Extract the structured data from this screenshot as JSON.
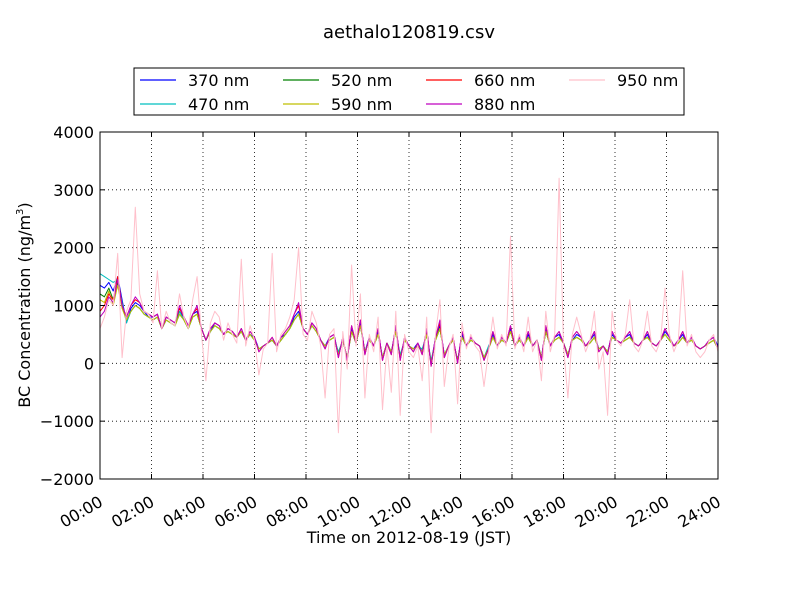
{
  "chart_data": {
    "type": "line",
    "title": "aethalo120819.csv",
    "xlabel": "Time on 2012-08-19 (JST)",
    "ylabel": "BC Concentration (ng/m",
    "ylabel_superscript": "3",
    "ylabel_suffix": ")",
    "xlim": [
      "00:00",
      "24:00"
    ],
    "ylim": [
      -2000,
      4000
    ],
    "grid": true,
    "legend_placement": "top",
    "x_ticks": [
      "00:00",
      "02:00",
      "04:00",
      "06:00",
      "08:00",
      "10:00",
      "12:00",
      "14:00",
      "16:00",
      "18:00",
      "20:00",
      "22:00",
      "24:00"
    ],
    "y_ticks": [
      -2000,
      -1000,
      0,
      1000,
      2000,
      3000,
      4000
    ],
    "y_tick_labels": [
      "−2000",
      "−1000",
      "0",
      "1000",
      "2000",
      "3000",
      "4000"
    ],
    "series": [
      {
        "name": "370 nm",
        "color": "#0000ff",
        "values": [
          1350,
          1300,
          1400,
          1250,
          1500,
          1100,
          700,
          950,
          1050,
          1000,
          900,
          800,
          800,
          850,
          600,
          800,
          750,
          700,
          900,
          800,
          650,
          850,
          900,
          600,
          400,
          550,
          700,
          650,
          500,
          600,
          550,
          450,
          600,
          400,
          500,
          450,
          250,
          300,
          350,
          400,
          300,
          450,
          500,
          600,
          800,
          900,
          600,
          500,
          700,
          600,
          400,
          300,
          450,
          500,
          150,
          400,
          100,
          600,
          350,
          700,
          200,
          450,
          300,
          550,
          100,
          350,
          200,
          600,
          100,
          400,
          300,
          250,
          350,
          200,
          550,
          0,
          450,
          650,
          150,
          300,
          400,
          50,
          500,
          300,
          450,
          350,
          300,
          100,
          250,
          500,
          300,
          450,
          350,
          600,
          300,
          450,
          300,
          500,
          300,
          400,
          100,
          600,
          300,
          450,
          500,
          350,
          150,
          400,
          500,
          450,
          300,
          400,
          500,
          250,
          300,
          200,
          500,
          400,
          350,
          450,
          500,
          350,
          300,
          400,
          500,
          350,
          300,
          400,
          550,
          450,
          300,
          400,
          500,
          350,
          450,
          300,
          250,
          300,
          400,
          450,
          300
        ]
      },
      {
        "name": "470 nm",
        "color": "#00bfbf",
        "values": [
          1550,
          1500,
          1450,
          1400,
          1450,
          1050,
          700,
          900,
          1000,
          950,
          850,
          800,
          750,
          800,
          600,
          750,
          700,
          650,
          900,
          750,
          600,
          800,
          850,
          600,
          400,
          550,
          650,
          600,
          500,
          550,
          500,
          450,
          550,
          400,
          500,
          400,
          250,
          300,
          350,
          400,
          300,
          400,
          500,
          600,
          750,
          850,
          600,
          500,
          650,
          550,
          400,
          300,
          400,
          450,
          200,
          400,
          100,
          550,
          350,
          650,
          200,
          400,
          300,
          500,
          100,
          350,
          200,
          550,
          150,
          400,
          300,
          250,
          300,
          250,
          500,
          50,
          400,
          600,
          150,
          300,
          400,
          50,
          450,
          300,
          400,
          350,
          300,
          100,
          300,
          450,
          300,
          400,
          350,
          550,
          300,
          400,
          300,
          450,
          300,
          400,
          100,
          550,
          300,
          400,
          450,
          350,
          150,
          400,
          450,
          400,
          300,
          350,
          450,
          250,
          300,
          200,
          450,
          400,
          350,
          400,
          450,
          350,
          300,
          400,
          450,
          350,
          300,
          400,
          500,
          400,
          300,
          350,
          450,
          350,
          400,
          300,
          250,
          300,
          350,
          400,
          250
        ]
      },
      {
        "name": "520 nm",
        "color": "#008000",
        "values": [
          1200,
          1150,
          1300,
          1100,
          1400,
          1000,
          750,
          900,
          1000,
          950,
          850,
          800,
          750,
          800,
          600,
          750,
          700,
          650,
          850,
          750,
          600,
          800,
          850,
          600,
          400,
          550,
          650,
          600,
          500,
          550,
          500,
          450,
          550,
          400,
          500,
          400,
          250,
          300,
          350,
          400,
          300,
          400,
          500,
          600,
          750,
          850,
          600,
          500,
          650,
          550,
          400,
          300,
          400,
          450,
          150,
          400,
          100,
          550,
          350,
          650,
          200,
          400,
          300,
          500,
          100,
          350,
          200,
          550,
          100,
          400,
          300,
          250,
          300,
          200,
          500,
          0,
          400,
          600,
          150,
          300,
          400,
          50,
          450,
          300,
          400,
          350,
          300,
          100,
          250,
          450,
          300,
          400,
          350,
          550,
          300,
          400,
          300,
          450,
          300,
          400,
          100,
          550,
          300,
          400,
          450,
          350,
          150,
          400,
          450,
          400,
          300,
          350,
          450,
          250,
          300,
          200,
          450,
          400,
          350,
          400,
          450,
          350,
          300,
          400,
          450,
          350,
          300,
          400,
          500,
          400,
          300,
          350,
          450,
          350,
          400,
          300,
          250,
          300,
          350,
          400,
          250
        ]
      },
      {
        "name": "590 nm",
        "color": "#bfbf00",
        "values": [
          1100,
          1050,
          1250,
          1000,
          1350,
          950,
          750,
          900,
          1000,
          950,
          850,
          800,
          750,
          800,
          600,
          750,
          700,
          650,
          850,
          750,
          600,
          800,
          850,
          600,
          400,
          550,
          650,
          600,
          500,
          550,
          500,
          450,
          550,
          400,
          500,
          400,
          250,
          300,
          350,
          400,
          300,
          400,
          500,
          600,
          750,
          850,
          600,
          500,
          650,
          550,
          400,
          300,
          400,
          450,
          150,
          400,
          100,
          550,
          350,
          650,
          200,
          400,
          300,
          500,
          100,
          350,
          200,
          550,
          100,
          400,
          300,
          250,
          300,
          200,
          500,
          0,
          400,
          600,
          150,
          300,
          400,
          50,
          450,
          300,
          400,
          350,
          300,
          100,
          250,
          450,
          300,
          400,
          350,
          550,
          300,
          400,
          300,
          450,
          300,
          400,
          100,
          550,
          300,
          400,
          450,
          350,
          150,
          400,
          450,
          400,
          300,
          350,
          450,
          250,
          300,
          200,
          450,
          400,
          350,
          400,
          450,
          350,
          300,
          400,
          450,
          350,
          300,
          400,
          500,
          400,
          300,
          350,
          450,
          350,
          400,
          300,
          250,
          300,
          350,
          400,
          250
        ]
      },
      {
        "name": "660 nm",
        "color": "#ff0000",
        "values": [
          900,
          1000,
          1200,
          1100,
          1500,
          1000,
          800,
          1000,
          1100,
          1050,
          900,
          850,
          800,
          850,
          600,
          800,
          750,
          700,
          950,
          800,
          650,
          850,
          950,
          600,
          400,
          600,
          700,
          650,
          500,
          600,
          550,
          450,
          600,
          400,
          550,
          450,
          200,
          300,
          350,
          450,
          300,
          450,
          550,
          650,
          850,
          1000,
          600,
          500,
          700,
          600,
          400,
          250,
          450,
          500,
          100,
          450,
          50,
          650,
          350,
          750,
          150,
          450,
          300,
          600,
          50,
          350,
          150,
          650,
          50,
          450,
          300,
          200,
          350,
          150,
          600,
          -50,
          450,
          700,
          100,
          300,
          450,
          0,
          550,
          300,
          450,
          350,
          300,
          50,
          250,
          550,
          300,
          450,
          350,
          650,
          300,
          450,
          300,
          550,
          300,
          400,
          50,
          650,
          300,
          450,
          550,
          350,
          100,
          450,
          550,
          450,
          300,
          400,
          550,
          200,
          300,
          150,
          550,
          400,
          350,
          450,
          550,
          350,
          300,
          400,
          550,
          350,
          300,
          400,
          600,
          450,
          300,
          400,
          550,
          350,
          450,
          300,
          250,
          300,
          400,
          450,
          250
        ]
      },
      {
        "name": "880 nm",
        "color": "#bf00bf",
        "values": [
          800,
          900,
          1150,
          1050,
          1450,
          1000,
          800,
          1000,
          1150,
          1050,
          900,
          850,
          800,
          850,
          600,
          800,
          750,
          700,
          1000,
          800,
          650,
          850,
          1000,
          600,
          400,
          600,
          700,
          650,
          500,
          600,
          550,
          450,
          600,
          400,
          550,
          450,
          200,
          300,
          350,
          450,
          300,
          450,
          550,
          650,
          850,
          1050,
          600,
          500,
          700,
          600,
          400,
          250,
          450,
          500,
          100,
          450,
          50,
          650,
          350,
          750,
          150,
          450,
          300,
          600,
          50,
          350,
          150,
          650,
          50,
          450,
          300,
          200,
          350,
          150,
          600,
          -50,
          450,
          750,
          100,
          300,
          450,
          0,
          550,
          300,
          450,
          350,
          300,
          50,
          250,
          550,
          300,
          450,
          350,
          650,
          300,
          450,
          300,
          550,
          300,
          400,
          50,
          650,
          300,
          450,
          550,
          350,
          100,
          450,
          550,
          450,
          300,
          400,
          550,
          200,
          300,
          150,
          550,
          400,
          350,
          450,
          550,
          350,
          300,
          400,
          550,
          350,
          300,
          400,
          600,
          450,
          300,
          400,
          550,
          350,
          450,
          300,
          250,
          300,
          400,
          450,
          250
        ]
      },
      {
        "name": "950 nm",
        "color": "#ffc0cb",
        "values": [
          600,
          800,
          1100,
          1000,
          1900,
          100,
          900,
          1100,
          2700,
          1200,
          900,
          850,
          700,
          1600,
          600,
          900,
          700,
          650,
          1200,
          800,
          600,
          1100,
          1500,
          500,
          -300,
          700,
          900,
          800,
          400,
          700,
          500,
          350,
          1800,
          300,
          650,
          400,
          -200,
          250,
          350,
          1900,
          200,
          500,
          600,
          800,
          1100,
          2000,
          500,
          400,
          900,
          700,
          300,
          -600,
          500,
          600,
          -1200,
          550,
          -100,
          1700,
          300,
          1200,
          -600,
          500,
          200,
          800,
          -800,
          300,
          -500,
          900,
          -900,
          500,
          200,
          100,
          300,
          -300,
          800,
          -1200,
          500,
          1100,
          -400,
          250,
          500,
          -700,
          700,
          250,
          500,
          300,
          200,
          -400,
          200,
          800,
          250,
          500,
          300,
          2200,
          250,
          500,
          200,
          800,
          200,
          400,
          -300,
          900,
          200,
          500,
          3200,
          300,
          -600,
          500,
          800,
          500,
          200,
          400,
          900,
          -100,
          200,
          -900,
          900,
          400,
          300,
          500,
          1100,
          300,
          200,
          400,
          900,
          300,
          200,
          400,
          1300,
          500,
          200,
          400,
          1600,
          300,
          500,
          200,
          100,
          200,
          400,
          500,
          200
        ]
      }
    ]
  }
}
